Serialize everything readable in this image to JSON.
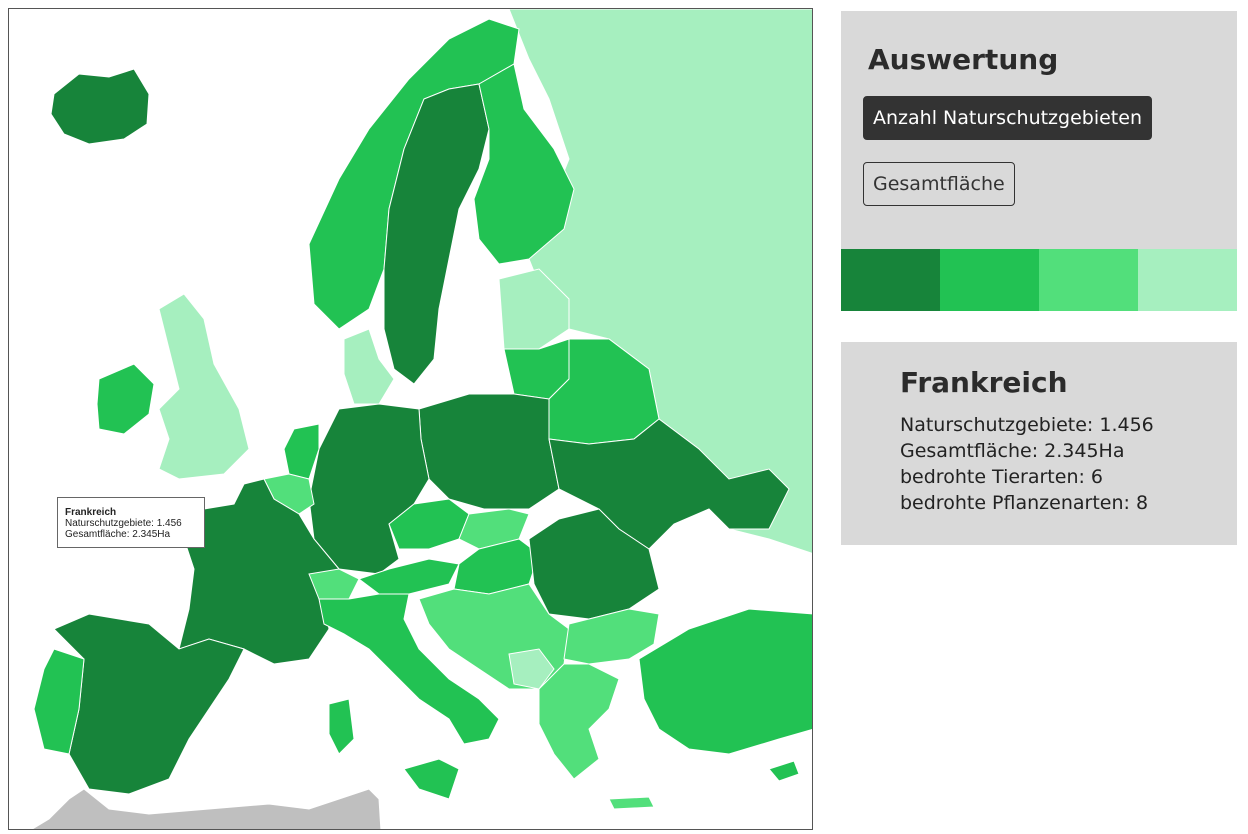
{
  "colors": {
    "level1": "#17843a",
    "level2": "#22c253",
    "level3": "#52df7b",
    "level4": "#a6efbf",
    "outside": "#bfbfbf",
    "sea": "#ffffff",
    "border": "#e8f5ec"
  },
  "tooltip": {
    "title": "Frankreich",
    "line1": "Naturschutzgebiete: 1.456",
    "line2": "Gesamtfläche: 2.345Ha"
  },
  "eval_panel": {
    "title": "Auswertung",
    "buttons": [
      {
        "label": "Anzahl Naturschutzgebieten",
        "active": true
      },
      {
        "label": "Gesamtfläche",
        "active": false
      }
    ],
    "legend_colors": [
      "#17843a",
      "#22c253",
      "#52df7b",
      "#a6efbf"
    ]
  },
  "info_panel": {
    "title": "Frankreich",
    "lines": [
      "Naturschutzgebiete: 1.456",
      "Gesamtfläche: 2.345Ha",
      "bedrohte Tierarten: 6",
      "bedrohte Pflanzenarten: 8"
    ]
  }
}
